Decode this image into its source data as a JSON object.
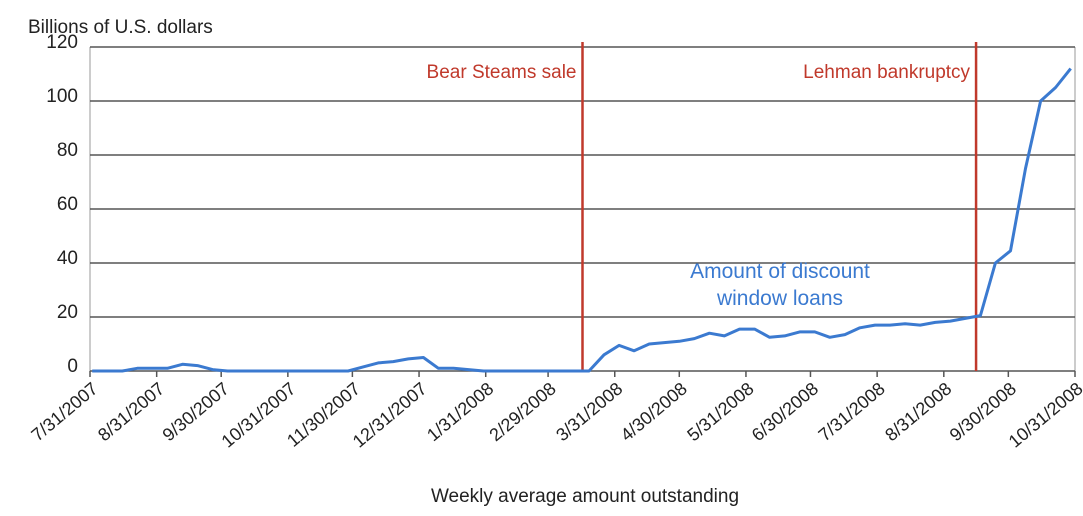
{
  "chart_data": {
    "type": "line",
    "title": "Billions of U.S. dollars",
    "xlabel": "Weekly average amount outstanding",
    "x": [
      "2007-08-01",
      "2007-08-08",
      "2007-08-15",
      "2007-08-22",
      "2007-08-29",
      "2007-09-05",
      "2007-09-12",
      "2007-09-19",
      "2007-09-26",
      "2007-10-03",
      "2007-10-10",
      "2007-10-17",
      "2007-10-24",
      "2007-10-31",
      "2007-11-07",
      "2007-11-14",
      "2007-11-21",
      "2007-11-28",
      "2007-12-05",
      "2007-12-12",
      "2007-12-19",
      "2007-12-26",
      "2008-01-02",
      "2008-01-09",
      "2008-01-16",
      "2008-01-23",
      "2008-01-30",
      "2008-02-06",
      "2008-02-13",
      "2008-02-20",
      "2008-02-27",
      "2008-03-05",
      "2008-03-12",
      "2008-03-19",
      "2008-03-26",
      "2008-04-02",
      "2008-04-09",
      "2008-04-16",
      "2008-04-23",
      "2008-04-30",
      "2008-05-07",
      "2008-05-14",
      "2008-05-21",
      "2008-05-28",
      "2008-06-04",
      "2008-06-11",
      "2008-06-18",
      "2008-06-25",
      "2008-07-02",
      "2008-07-09",
      "2008-07-16",
      "2008-07-23",
      "2008-07-30",
      "2008-08-06",
      "2008-08-13",
      "2008-08-20",
      "2008-08-27",
      "2008-09-03",
      "2008-09-10",
      "2008-09-17",
      "2008-09-24",
      "2008-10-01",
      "2008-10-08",
      "2008-10-15",
      "2008-10-22",
      "2008-10-29"
    ],
    "series": [
      {
        "name": "Amount of discount window loans",
        "color": "#3b7ad0",
        "values": [
          0,
          0,
          0,
          1,
          1,
          1,
          2.5,
          2,
          0.5,
          0,
          0,
          0,
          0,
          0,
          0,
          0,
          0,
          0,
          1.5,
          3,
          3.5,
          4.5,
          5,
          1,
          1,
          0.5,
          0,
          0,
          0,
          0,
          0,
          0,
          0,
          0,
          6,
          9.5,
          7.5,
          10,
          10.5,
          11,
          12,
          14,
          13,
          15.5,
          15.5,
          12.5,
          13,
          14.5,
          14.5,
          12.5,
          13.5,
          16,
          17,
          17,
          17.5,
          17,
          18,
          18.5,
          19.5,
          20.5,
          40,
          44.5,
          75,
          100,
          105,
          112
        ]
      }
    ],
    "xlim": [
      "2007-07-31",
      "2008-10-31"
    ],
    "xticks": [
      {
        "value": "2007-07-31",
        "label": "7/31/2007"
      },
      {
        "value": "2007-08-31",
        "label": "8/31/2007"
      },
      {
        "value": "2007-09-30",
        "label": "9/30/2007"
      },
      {
        "value": "2007-10-31",
        "label": "10/31/2007"
      },
      {
        "value": "2007-11-30",
        "label": "11/30/2007"
      },
      {
        "value": "2007-12-31",
        "label": "12/31/2007"
      },
      {
        "value": "2008-01-31",
        "label": "1/31/2008"
      },
      {
        "value": "2008-02-29",
        "label": "2/29/2008"
      },
      {
        "value": "2008-03-31",
        "label": "3/31/2008"
      },
      {
        "value": "2008-04-30",
        "label": "4/30/2008"
      },
      {
        "value": "2008-05-31",
        "label": "5/31/2008"
      },
      {
        "value": "2008-06-30",
        "label": "6/30/2008"
      },
      {
        "value": "2008-07-31",
        "label": "7/31/2008"
      },
      {
        "value": "2008-08-31",
        "label": "8/31/2008"
      },
      {
        "value": "2008-09-30",
        "label": "9/30/2008"
      },
      {
        "value": "2008-10-31",
        "label": "10/31/2008"
      }
    ],
    "ylim": [
      0,
      120
    ],
    "yticks": [
      0,
      20,
      40,
      60,
      80,
      100,
      120
    ],
    "grid": true,
    "annotations": [
      {
        "text": "Bear Steams sale",
        "x": "2008-03-16",
        "color": "#c0392b"
      },
      {
        "text": "Lehman bankruptcy",
        "x": "2008-09-15",
        "color": "#c0392b"
      }
    ]
  }
}
